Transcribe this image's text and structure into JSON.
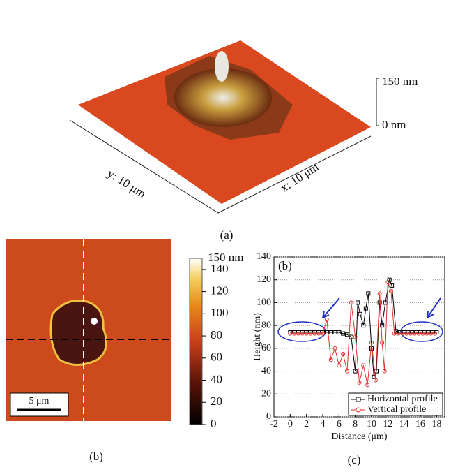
{
  "panel_a": {
    "label": "(a)",
    "z_top": "150 nm",
    "z_bottom": "0 nm",
    "y_axis": "y: 10 μm",
    "x_axis": "x: 10 μm"
  },
  "panel_b": {
    "label": "(b)",
    "scale_bar": "5 μm",
    "colorbar": {
      "top_label": "150 nm",
      "lim": [
        0,
        150
      ],
      "ticks": [
        0,
        20,
        40,
        60,
        80,
        100,
        120,
        140
      ]
    }
  },
  "chart_data": {
    "type": "line",
    "annotation": "(b)",
    "panel_label": "(c)",
    "xlabel": "Distance (μm)",
    "ylabel": "Height (nm)",
    "xlim": [
      -2,
      19
    ],
    "xticks": [
      -2,
      0,
      2,
      4,
      6,
      8,
      10,
      12,
      14,
      16,
      18
    ],
    "ylim": [
      0,
      140
    ],
    "yticks": [
      0,
      20,
      40,
      60,
      80,
      100,
      120,
      140
    ],
    "grid": true,
    "series": [
      {
        "name": "Horizontal profile",
        "color": "#000000",
        "marker": "square",
        "x": [
          0,
          0.5,
          1,
          1.5,
          2,
          2.5,
          3,
          3.5,
          4,
          4.5,
          5,
          5.5,
          6,
          6.5,
          7,
          7.5,
          8,
          8.3,
          8.6,
          9,
          9.3,
          9.6,
          10,
          10.3,
          10.6,
          11,
          11.3,
          11.7,
          12.2,
          12.5,
          13,
          13.5,
          14,
          14.5,
          15,
          15.5,
          16,
          16.5,
          17,
          17.5,
          18
        ],
        "values": [
          74,
          74,
          74,
          74,
          74,
          74,
          74,
          74,
          74,
          74,
          74,
          74,
          74,
          73,
          72,
          70,
          40,
          100,
          90,
          80,
          95,
          108,
          60,
          35,
          40,
          100,
          80,
          100,
          120,
          115,
          75,
          74,
          74,
          74,
          74,
          74,
          74,
          74,
          74,
          74,
          74
        ]
      },
      {
        "name": "Vertical profile",
        "color": "#e0302a",
        "marker": "circle",
        "x": [
          0,
          0.5,
          1,
          1.5,
          2,
          2.5,
          3,
          3.5,
          4,
          4.5,
          5,
          5.5,
          6,
          6.5,
          7,
          7.5,
          8,
          8.5,
          9,
          9.5,
          10,
          10.5,
          11,
          11.3,
          11.6,
          12,
          12.4,
          12.8,
          13.3,
          13.8,
          14.3,
          14.8,
          15.3,
          15.8,
          16.3,
          16.8,
          17.3,
          17.8
        ],
        "values": [
          73,
          73,
          73,
          73,
          73,
          73,
          73,
          73,
          73,
          85,
          50,
          60,
          45,
          55,
          40,
          100,
          70,
          30,
          45,
          28,
          65,
          32,
          108,
          65,
          40,
          118,
          110,
          73,
          73,
          73,
          73,
          73,
          73,
          73,
          73,
          73,
          73,
          73
        ]
      }
    ]
  }
}
